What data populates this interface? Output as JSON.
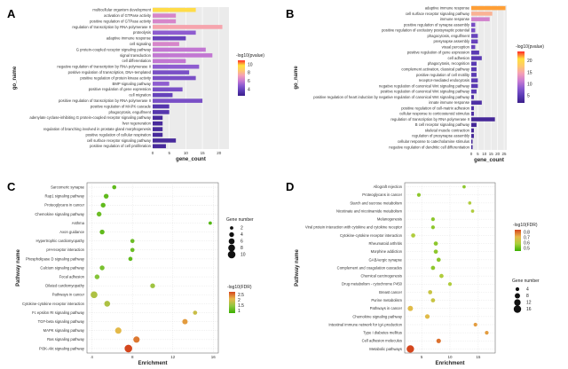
{
  "colors": {
    "bar_scale": [
      "#3b1e8a",
      "#5b3bb5",
      "#8a5ad0",
      "#c97bd2",
      "#f59fb6",
      "#ffc96b",
      "#ffe23d",
      "#ff2a2a"
    ],
    "dot_scale_c": [
      "#3bb000",
      "#8dc63f",
      "#e8b84a",
      "#d4461d"
    ],
    "dot_scale_d": [
      "#3bb000",
      "#a8cf3a",
      "#e8b84a",
      "#d4461d"
    ]
  },
  "chart_data": [
    {
      "panel": "A",
      "type": "bar",
      "orientation": "horizontal",
      "ylabel": "go_name",
      "xlabel": "gene_count",
      "xticks": [
        0,
        5,
        10,
        15,
        20
      ],
      "xlim": [
        0,
        23
      ],
      "legend_title": "-log10(pvalue)",
      "legend_ticks": [
        4,
        6,
        8,
        10
      ],
      "legend_range": [
        2.5,
        11
      ],
      "categories": [
        "multicellular organism development",
        "activation of GTPase activity",
        "positive regulation of GTPase activity",
        "regulation of transcription by RNA polymerase II",
        "proteolysis",
        "adaptive immune response",
        "cell signaling",
        "G protein-coupled receptor signaling pathway",
        "signal transduction",
        "cell differentiation",
        "negative regulation of transcription by RNA polymerase II",
        "positive regulation of transcription, DNA-templated",
        "positive regulation of protein kinase activity",
        "BMP signaling pathway",
        "positive regulation of gene expression",
        "cell migration",
        "positive regulation of transcription by RNA polymerase II",
        "positive regulation of MAPK cascade",
        "phagocytosis, engulfment",
        "adenylate cyclase-inhibiting G protein-coupled receptor signaling pathway",
        "liver regeneration",
        "regulation of branching involved in prostate gland morphogenesis",
        "positive regulation of cellular respiration",
        "cell surface receptor signaling pathway",
        "positive regulation of cell proliferation"
      ],
      "values": [
        13,
        7,
        7,
        21,
        13,
        10,
        8,
        16,
        18,
        10,
        14,
        11,
        13,
        5,
        9,
        6,
        15,
        5,
        5,
        3,
        3,
        3,
        3,
        7,
        4
      ],
      "pvalue": [
        9.5,
        6.5,
        6.5,
        7.5,
        5,
        4,
        6.5,
        6,
        6,
        6,
        5,
        4.5,
        4.5,
        5,
        4.5,
        4,
        4.5,
        3.5,
        3.5,
        3,
        3,
        3,
        3,
        3,
        3
      ]
    },
    {
      "panel": "B",
      "type": "bar",
      "orientation": "horizontal",
      "ylabel": "go_name",
      "xlabel": "gene_count",
      "xticks": [
        0,
        5,
        10,
        15,
        20,
        25
      ],
      "xlim": [
        0,
        27
      ],
      "legend_title": "-log10(pvalue)",
      "legend_ticks": [
        5,
        10,
        15,
        20
      ],
      "legend_range": [
        2,
        24
      ],
      "categories": [
        "adaptive immune response",
        "cell surface receptor signaling pathway",
        "immune response",
        "positive regulation of synapse assembly",
        "positive regulation of excitatory postsynaptic potential",
        "phagocytosis, engulfment",
        "presynapse assembly",
        "visual perception",
        "positive regulation of gene expression",
        "cell adhesion",
        "phagocytosis, recognition",
        "complement activation, classical pathway",
        "positive regulation of cell motility",
        "receptor-mediated endocytosis",
        "negative regulation of canonical Wnt signaling pathway",
        "positive regulation of canonical Wnt signaling pathway",
        "positive regulation of heart induction by negative regulation of canonical Wnt signaling pathway",
        "innate immune response",
        "positive regulation of cell-matrix adhesion",
        "cellular response to corticosteroid stimulus",
        "regulation of transcription by RNA polymerase II",
        "B cell receptor signaling pathway",
        "skeletal muscle contraction",
        "regulation of presynapse assembly",
        "cellular response to catecholamine stimulus",
        "negative regulation of dendritic cell differentiation"
      ],
      "values": [
        26,
        16,
        14,
        3,
        3,
        5,
        5,
        3,
        6,
        8,
        4,
        4,
        4,
        5,
        5,
        4,
        2,
        8,
        2,
        2,
        18,
        4,
        2,
        2,
        1,
        1
      ],
      "pvalue": [
        22,
        16,
        12,
        7,
        7,
        6,
        6,
        6,
        5,
        5,
        5,
        5,
        5,
        5,
        5,
        5,
        4,
        4,
        4,
        4,
        3,
        3,
        3,
        3,
        3,
        3
      ]
    },
    {
      "panel": "C",
      "type": "scatter",
      "ylabel": "Pathway name",
      "xlabel": "Enrichment",
      "xticks": [
        4,
        8,
        12,
        16
      ],
      "xlim": [
        3.5,
        16.5
      ],
      "size_legend_title": "Gene number",
      "size_legend_values": [
        2,
        4,
        6,
        8,
        10
      ],
      "color_legend_title": "-log10(FDR)",
      "color_legend_ticks": [
        1,
        1.5,
        2,
        2.5
      ],
      "color_range": [
        0.8,
        2.8
      ],
      "categories": [
        "Sarcomeric synapse",
        "Rap1 signaling pathway",
        "Proteoglycans in cancer",
        "Chemokine signaling pathway",
        "Asthma",
        "Axon guidance",
        "Hypertrophic cardiomyopathy",
        "pH-receptor interaction",
        "Phospholipase D signaling pathway",
        "Calcium signaling pathway",
        "Focal adhesion",
        "Dilated cardiomyopathy",
        "Pathways in cancer",
        "Cytokine-cytokine receptor interaction",
        "Fc epsilon RI signaling pathway",
        "TGF-beta signaling pathway",
        "MAPK signaling pathway",
        "Ras signaling pathway",
        "PI3K-Akt signaling pathway"
      ],
      "x": [
        6.2,
        5.4,
        5.1,
        4.7,
        15.7,
        5.0,
        8.0,
        8.0,
        7.8,
        5.0,
        4.5,
        10.0,
        4.2,
        5.5,
        14.2,
        13.2,
        6.6,
        8.4,
        7.6
      ],
      "size": [
        3,
        4,
        4,
        4,
        2,
        4,
        3,
        3,
        3,
        4,
        4,
        4,
        8,
        6,
        3,
        5,
        7,
        7,
        10
      ],
      "fdr": [
        1.1,
        1.1,
        1.1,
        1.2,
        1.0,
        1.1,
        1.2,
        1.2,
        1.1,
        1.3,
        1.4,
        1.6,
        1.7,
        1.7,
        1.9,
        2.3,
        2.1,
        2.5,
        2.8
      ]
    },
    {
      "panel": "D",
      "type": "scatter",
      "ylabel": "Pathway name",
      "xlabel": "Enrichment",
      "xticks": [
        5,
        10,
        15
      ],
      "xlim": [
        2,
        18
      ],
      "size_legend_title": "Gene number",
      "size_legend_values": [
        4,
        8,
        12,
        16
      ],
      "color_legend_title": "-log10(FDR)",
      "color_legend_ticks": [
        0.5,
        0.6,
        0.7,
        0.8
      ],
      "color_range": [
        0.45,
        0.85
      ],
      "categories": [
        "Allograft rejection",
        "Proteoglycans in cancer",
        "Starch and sucrose metabolism",
        "Nicotinate and nicotinamide metabolism",
        "Melanogenesis",
        "Viral protein interaction with cytokine and cytokine receptor",
        "Cytokine-cytokine receptor interaction",
        "Rheumatoid arthritis",
        "Morphine addiction",
        "GABAergic synapse",
        "Complement and coagulation cascades",
        "Chemical carcinogenesis",
        "Drug metabolism - cytochrome P450",
        "Breast cancer",
        "Purine metabolism",
        "Pathways in cancer",
        "Chemokine signaling pathway",
        "Intestinal immune network for IgA production",
        "Type I diabetes mellitus",
        "Cell adhesion molecules",
        "Metabolic pathways"
      ],
      "x": [
        12.5,
        4.5,
        13.5,
        14.0,
        7.0,
        7.0,
        3.5,
        7.5,
        7.5,
        8.0,
        7.0,
        8.5,
        10.0,
        6.5,
        7.0,
        3.0,
        6.0,
        14.5,
        16.5,
        8.0,
        3.0
      ],
      "size": [
        3,
        4,
        3,
        3,
        4,
        4,
        5,
        5,
        5,
        5,
        5,
        5,
        4,
        5,
        5,
        8,
        6,
        4,
        4,
        6,
        16
      ],
      "fdr": [
        0.55,
        0.55,
        0.6,
        0.6,
        0.55,
        0.55,
        0.6,
        0.55,
        0.55,
        0.55,
        0.55,
        0.6,
        0.6,
        0.65,
        0.65,
        0.7,
        0.7,
        0.75,
        0.75,
        0.8,
        0.85
      ]
    }
  ]
}
